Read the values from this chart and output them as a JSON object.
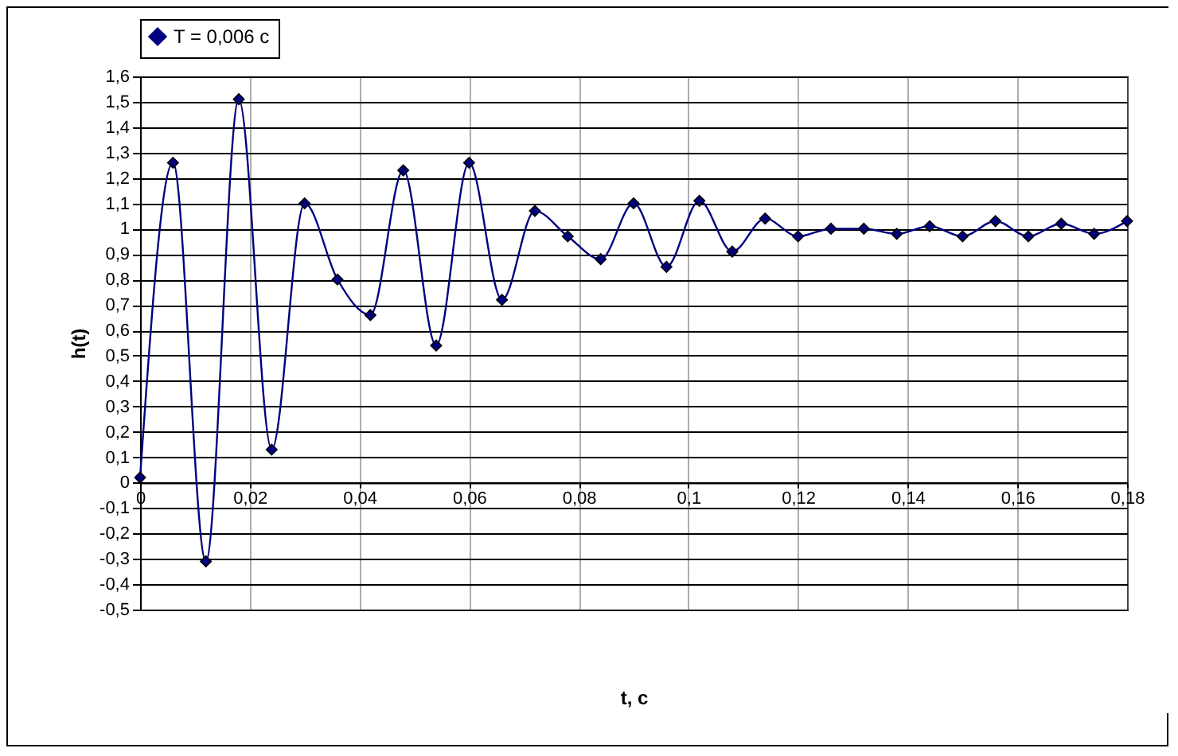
{
  "chart_data": {
    "type": "line",
    "xlabel": "t, c",
    "ylabel": "h(t)",
    "x": [
      0,
      0.006,
      0.012,
      0.018,
      0.024,
      0.03,
      0.036,
      0.042,
      0.048,
      0.054,
      0.06,
      0.066,
      0.072,
      0.078,
      0.084,
      0.09,
      0.096,
      0.102,
      0.108,
      0.114,
      0.12,
      0.126,
      0.132,
      0.138,
      0.144,
      0.15,
      0.156,
      0.162,
      0.168,
      0.174,
      0.18
    ],
    "series": [
      {
        "name": "T = 0,006 c",
        "color": "#000080",
        "values": [
          0.02,
          1.26,
          -0.31,
          1.51,
          0.13,
          1.1,
          0.8,
          0.66,
          1.23,
          0.54,
          1.26,
          0.72,
          1.07,
          0.97,
          0.88,
          1.1,
          0.85,
          1.11,
          0.91,
          1.04,
          0.97,
          1.0,
          1.0,
          0.98,
          1.01,
          0.97,
          1.03,
          0.97,
          1.02,
          0.98,
          1.03
        ]
      }
    ],
    "xlim": [
      0,
      0.18
    ],
    "xticks": [
      0,
      {
        "value": 0.02,
        "label": "0,02"
      },
      {
        "value": 0.04,
        "label": "0,04"
      },
      {
        "value": 0.06,
        "label": "0,06"
      },
      {
        "value": 0.08,
        "label": "0,08"
      },
      {
        "value": 0.1,
        "label": "0,1"
      },
      {
        "value": 0.12,
        "label": "0,12"
      },
      {
        "value": 0.14,
        "label": "0,14"
      },
      {
        "value": 0.16,
        "label": "0,16"
      },
      {
        "value": 0.18,
        "label": "0,18"
      }
    ],
    "ylim": [
      -0.5,
      1.6
    ],
    "yticks": [
      {
        "value": -0.5,
        "label": "-0,5"
      },
      {
        "value": -0.4,
        "label": "-0,4"
      },
      {
        "value": -0.3,
        "label": "-0,3"
      },
      {
        "value": -0.2,
        "label": "-0,2"
      },
      {
        "value": -0.1,
        "label": "-0,1"
      },
      0,
      {
        "value": 0.1,
        "label": "0,1"
      },
      {
        "value": 0.2,
        "label": "0,2"
      },
      {
        "value": 0.3,
        "label": "0,3"
      },
      {
        "value": 0.4,
        "label": "0,4"
      },
      {
        "value": 0.5,
        "label": "0,5"
      },
      {
        "value": 0.6,
        "label": "0,6"
      },
      {
        "value": 0.7,
        "label": "0,7"
      },
      {
        "value": 0.8,
        "label": "0,8"
      },
      {
        "value": 0.9,
        "label": "0,9"
      },
      1,
      {
        "value": 1.1,
        "label": "1,1"
      },
      {
        "value": 1.2,
        "label": "1,2"
      },
      {
        "value": 1.3,
        "label": "1,3"
      },
      {
        "value": 1.4,
        "label": "1,4"
      },
      {
        "value": 1.5,
        "label": "1,5"
      },
      {
        "value": 1.6,
        "label": "1,6"
      }
    ],
    "grid": true,
    "legend": "top",
    "marker": "diamond",
    "line_style": "solid"
  }
}
